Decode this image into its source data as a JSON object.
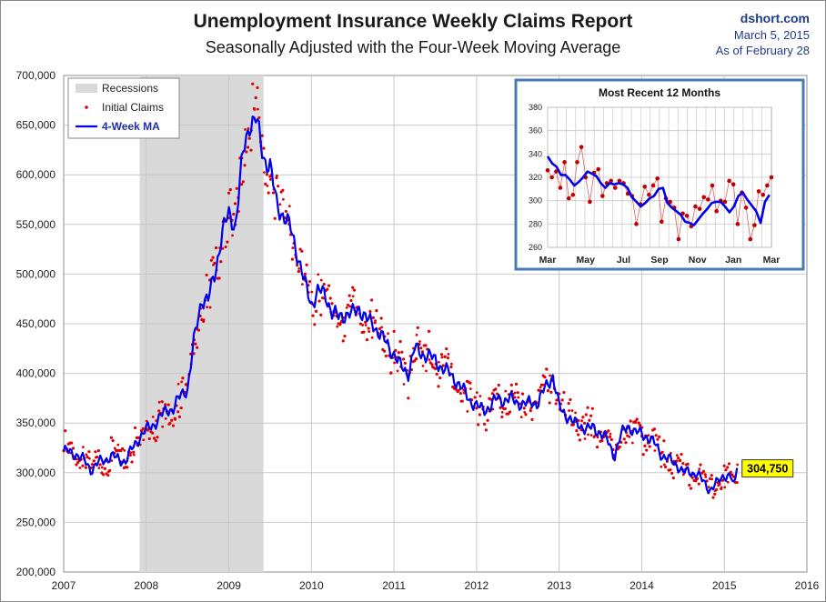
{
  "title": "Unemployment Insurance Weekly Claims Report",
  "subtitle": "Seasonally Adjusted with the Four-Week Moving Average",
  "credit": {
    "site": "dshort.com",
    "date": "March 5, 2015",
    "as_of": "As of February 28"
  },
  "chart_data": [
    {
      "type": "line",
      "xlim": [
        2007,
        2016
      ],
      "ylim": [
        200000,
        700000
      ],
      "x_ticks": [
        "2007",
        "2008",
        "2009",
        "2010",
        "2011",
        "2012",
        "2013",
        "2014",
        "2015",
        "2016"
      ],
      "y_ticks": [
        "200,000",
        "250,000",
        "300,000",
        "350,000",
        "400,000",
        "450,000",
        "500,000",
        "550,000",
        "600,000",
        "650,000",
        "700,000"
      ],
      "grid": true,
      "legend": {
        "position": "top-left",
        "items": [
          "Recessions",
          "Initial Claims",
          "4-Week MA"
        ]
      },
      "recession": {
        "start": 2007.92,
        "end": 2009.42,
        "color": "#d9d9d9"
      },
      "callout": {
        "label": "304,750",
        "x": 2015.16,
        "y": 304750,
        "color": "#ffff00"
      },
      "colors": {
        "ma": "#0000ee",
        "claims": "#e00000"
      },
      "ma_anchors": [
        [
          2007.0,
          322000
        ],
        [
          2007.08,
          320000
        ],
        [
          2007.17,
          318000
        ],
        [
          2007.25,
          312000
        ],
        [
          2007.33,
          303000
        ],
        [
          2007.42,
          310000
        ],
        [
          2007.5,
          313000
        ],
        [
          2007.58,
          317000
        ],
        [
          2007.67,
          313000
        ],
        [
          2007.75,
          312000
        ],
        [
          2007.83,
          324000
        ],
        [
          2007.92,
          336000
        ],
        [
          2008.0,
          343000
        ],
        [
          2008.08,
          348000
        ],
        [
          2008.17,
          356000
        ],
        [
          2008.25,
          363000
        ],
        [
          2008.33,
          365000
        ],
        [
          2008.42,
          378000
        ],
        [
          2008.5,
          385000
        ],
        [
          2008.58,
          433000
        ],
        [
          2008.67,
          475000
        ],
        [
          2008.75,
          474000
        ],
        [
          2008.83,
          500000
        ],
        [
          2008.92,
          542000
        ],
        [
          2009.0,
          560000
        ],
        [
          2009.08,
          549000
        ],
        [
          2009.17,
          620000
        ],
        [
          2009.25,
          652000
        ],
        [
          2009.33,
          656000
        ],
        [
          2009.42,
          618000
        ],
        [
          2009.5,
          608000
        ],
        [
          2009.58,
          570000
        ],
        [
          2009.67,
          558000
        ],
        [
          2009.75,
          545000
        ],
        [
          2009.83,
          521000
        ],
        [
          2009.92,
          490000
        ],
        [
          2010.0,
          470000
        ],
        [
          2010.08,
          483000
        ],
        [
          2010.17,
          479000
        ],
        [
          2010.25,
          462000
        ],
        [
          2010.33,
          456000
        ],
        [
          2010.42,
          460000
        ],
        [
          2010.5,
          460000
        ],
        [
          2010.58,
          466000
        ],
        [
          2010.67,
          454000
        ],
        [
          2010.75,
          449000
        ],
        [
          2010.83,
          440000
        ],
        [
          2010.92,
          428000
        ],
        [
          2011.0,
          420000
        ],
        [
          2011.08,
          407000
        ],
        [
          2011.17,
          400000
        ],
        [
          2011.25,
          425000
        ],
        [
          2011.33,
          420000
        ],
        [
          2011.42,
          418000
        ],
        [
          2011.5,
          413000
        ],
        [
          2011.58,
          406000
        ],
        [
          2011.67,
          400000
        ],
        [
          2011.75,
          393000
        ],
        [
          2011.83,
          384000
        ],
        [
          2011.92,
          373000
        ],
        [
          2012.0,
          367000
        ],
        [
          2012.08,
          363000
        ],
        [
          2012.17,
          367000
        ],
        [
          2012.25,
          375000
        ],
        [
          2012.33,
          373000
        ],
        [
          2012.42,
          374000
        ],
        [
          2012.5,
          371000
        ],
        [
          2012.58,
          368000
        ],
        [
          2012.67,
          372000
        ],
        [
          2012.75,
          370000
        ],
        [
          2012.83,
          386000
        ],
        [
          2012.92,
          398000
        ],
        [
          2013.0,
          366000
        ],
        [
          2013.08,
          359000
        ],
        [
          2013.17,
          350000
        ],
        [
          2013.25,
          348000
        ],
        [
          2013.33,
          344000
        ],
        [
          2013.42,
          345000
        ],
        [
          2013.5,
          340000
        ],
        [
          2013.58,
          333000
        ],
        [
          2013.67,
          317000
        ],
        [
          2013.75,
          338000
        ],
        [
          2013.83,
          348000
        ],
        [
          2013.92,
          340000
        ],
        [
          2014.0,
          340000
        ],
        [
          2014.08,
          335000
        ],
        [
          2014.17,
          328000
        ],
        [
          2014.25,
          317000
        ],
        [
          2014.33,
          313000
        ],
        [
          2014.42,
          309000
        ],
        [
          2014.5,
          300000
        ],
        [
          2014.58,
          301000
        ],
        [
          2014.67,
          299000
        ],
        [
          2014.75,
          290000
        ],
        [
          2014.83,
          283000
        ],
        [
          2014.92,
          290000
        ],
        [
          2015.0,
          298000
        ],
        [
          2015.08,
          296000
        ],
        [
          2015.12,
          284000
        ],
        [
          2015.16,
          304750
        ]
      ]
    },
    {
      "type": "line",
      "title": "Most Recent 12 Months",
      "ylim": [
        260,
        380
      ],
      "x_ticks": [
        "Mar",
        "May",
        "Jul",
        "Sep",
        "Nov",
        "Jan",
        "Mar"
      ],
      "y_ticks": [
        "260",
        "280",
        "300",
        "320",
        "340",
        "360",
        "380"
      ],
      "grid": true,
      "x_range_weeks": [
        0,
        56
      ],
      "x_tick_weeks": [
        0,
        9.5,
        19,
        28,
        37.5,
        46.5,
        56
      ],
      "claims": [
        326,
        320,
        325,
        311,
        333,
        302,
        305,
        333,
        346,
        320,
        299,
        324,
        327,
        304,
        315,
        317,
        311,
        317,
        315,
        306,
        304,
        280,
        297,
        312,
        305,
        313,
        319,
        282,
        302,
        299,
        294,
        267,
        289,
        287,
        278,
        295,
        293,
        303,
        301,
        313,
        291,
        300,
        299,
        317,
        314,
        280,
        307,
        294,
        267,
        279,
        308,
        305,
        313,
        320
      ],
      "ma": [
        338,
        332,
        329,
        322,
        322,
        318,
        313,
        316,
        320,
        325,
        323,
        321,
        315,
        311,
        315,
        314,
        315,
        314,
        311,
        303,
        299,
        295,
        298,
        302,
        304,
        310,
        311,
        298,
        294,
        291,
        288,
        282,
        281,
        279,
        284,
        289,
        293,
        298,
        299,
        299,
        295,
        290,
        295,
        304,
        307,
        301,
        296,
        291,
        281,
        299,
        305
      ]
    }
  ]
}
